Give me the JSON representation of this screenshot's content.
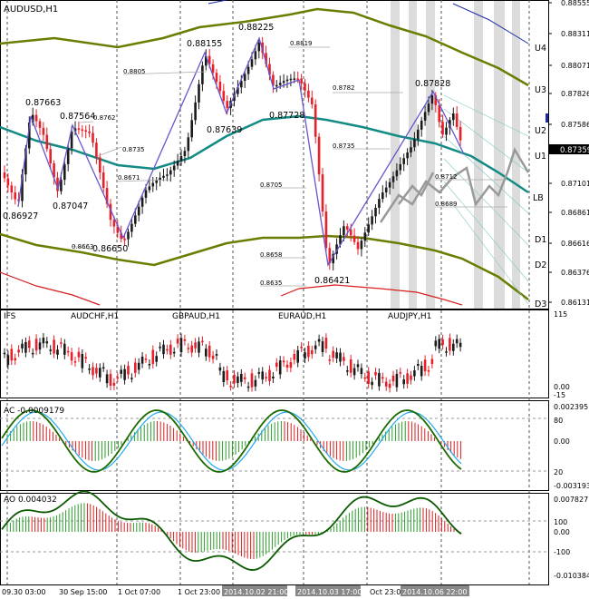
{
  "window_title": "AUDUSD,H1",
  "colors": {
    "bull": "#1b1b1b",
    "bear": "#e8202a",
    "band_outer": "#6b7d00",
    "band_mid": "#138a84",
    "red_band": "#d81e1e",
    "zigzag": "#6655cc",
    "forecast": "#999999",
    "trend_blue": "#1a2aa8",
    "ac_green": "#1c6b00",
    "ac_cyan": "#22aaee",
    "ao_dark": "#0a5a00",
    "histo_red": "#d81e1e",
    "histo_green": "#2a9a2a",
    "axis_highlight": "#000000"
  },
  "main": {
    "price_ticks": [
      "0.88555",
      "0.88311",
      "0.88071",
      "0.87826",
      "0.87586",
      "0.87101",
      "0.86861",
      "0.86616",
      "0.86376",
      "0.86131"
    ],
    "current_price": "0.87359",
    "band_labels": [
      "U4",
      "U3",
      "U2",
      "U1",
      "LB",
      "D1",
      "D2",
      "D3"
    ],
    "zigzag_labels": [
      "0.86927",
      "0.87663",
      "0.87047",
      "0.87564",
      "0.86650",
      "0.88155",
      "0.87639",
      "0.88225",
      "0.87728",
      "0.86421",
      "0.87828"
    ],
    "level_labels": [
      "0.8762",
      "0.8735",
      "0.8671",
      "0.8663",
      "0.8805",
      "0.8819",
      "0.8705",
      "0.8658",
      "0.8635",
      "0.8782",
      "0.8735",
      "0.8712",
      "0.8689"
    ]
  },
  "ifs": {
    "label": "IFS",
    "pairs": [
      "AUDCHF,H1",
      "GBPAUD,H1",
      "EURAUD,H1",
      "AUDJPY,H1"
    ],
    "ticks": [
      "115",
      "0.00",
      "-15"
    ]
  },
  "ac": {
    "label": "AC -0.0009179",
    "ticks": [
      "0.002395",
      "80",
      "0.00",
      "20",
      "-0.003193"
    ]
  },
  "ao": {
    "label": "AO 0.004032",
    "ticks": [
      "0.007827",
      "100",
      "0.00",
      "-100",
      "-0.010384"
    ]
  },
  "time_axis": [
    "09.30 03:00",
    "30 Sep 15:00",
    "1 Oct 07:00",
    "1 Oct 23:00",
    "2014.10.02 21:00",
    "2014.10.03 17:00",
    "Oct 23:00",
    "2014.10.06 22:00"
  ]
}
